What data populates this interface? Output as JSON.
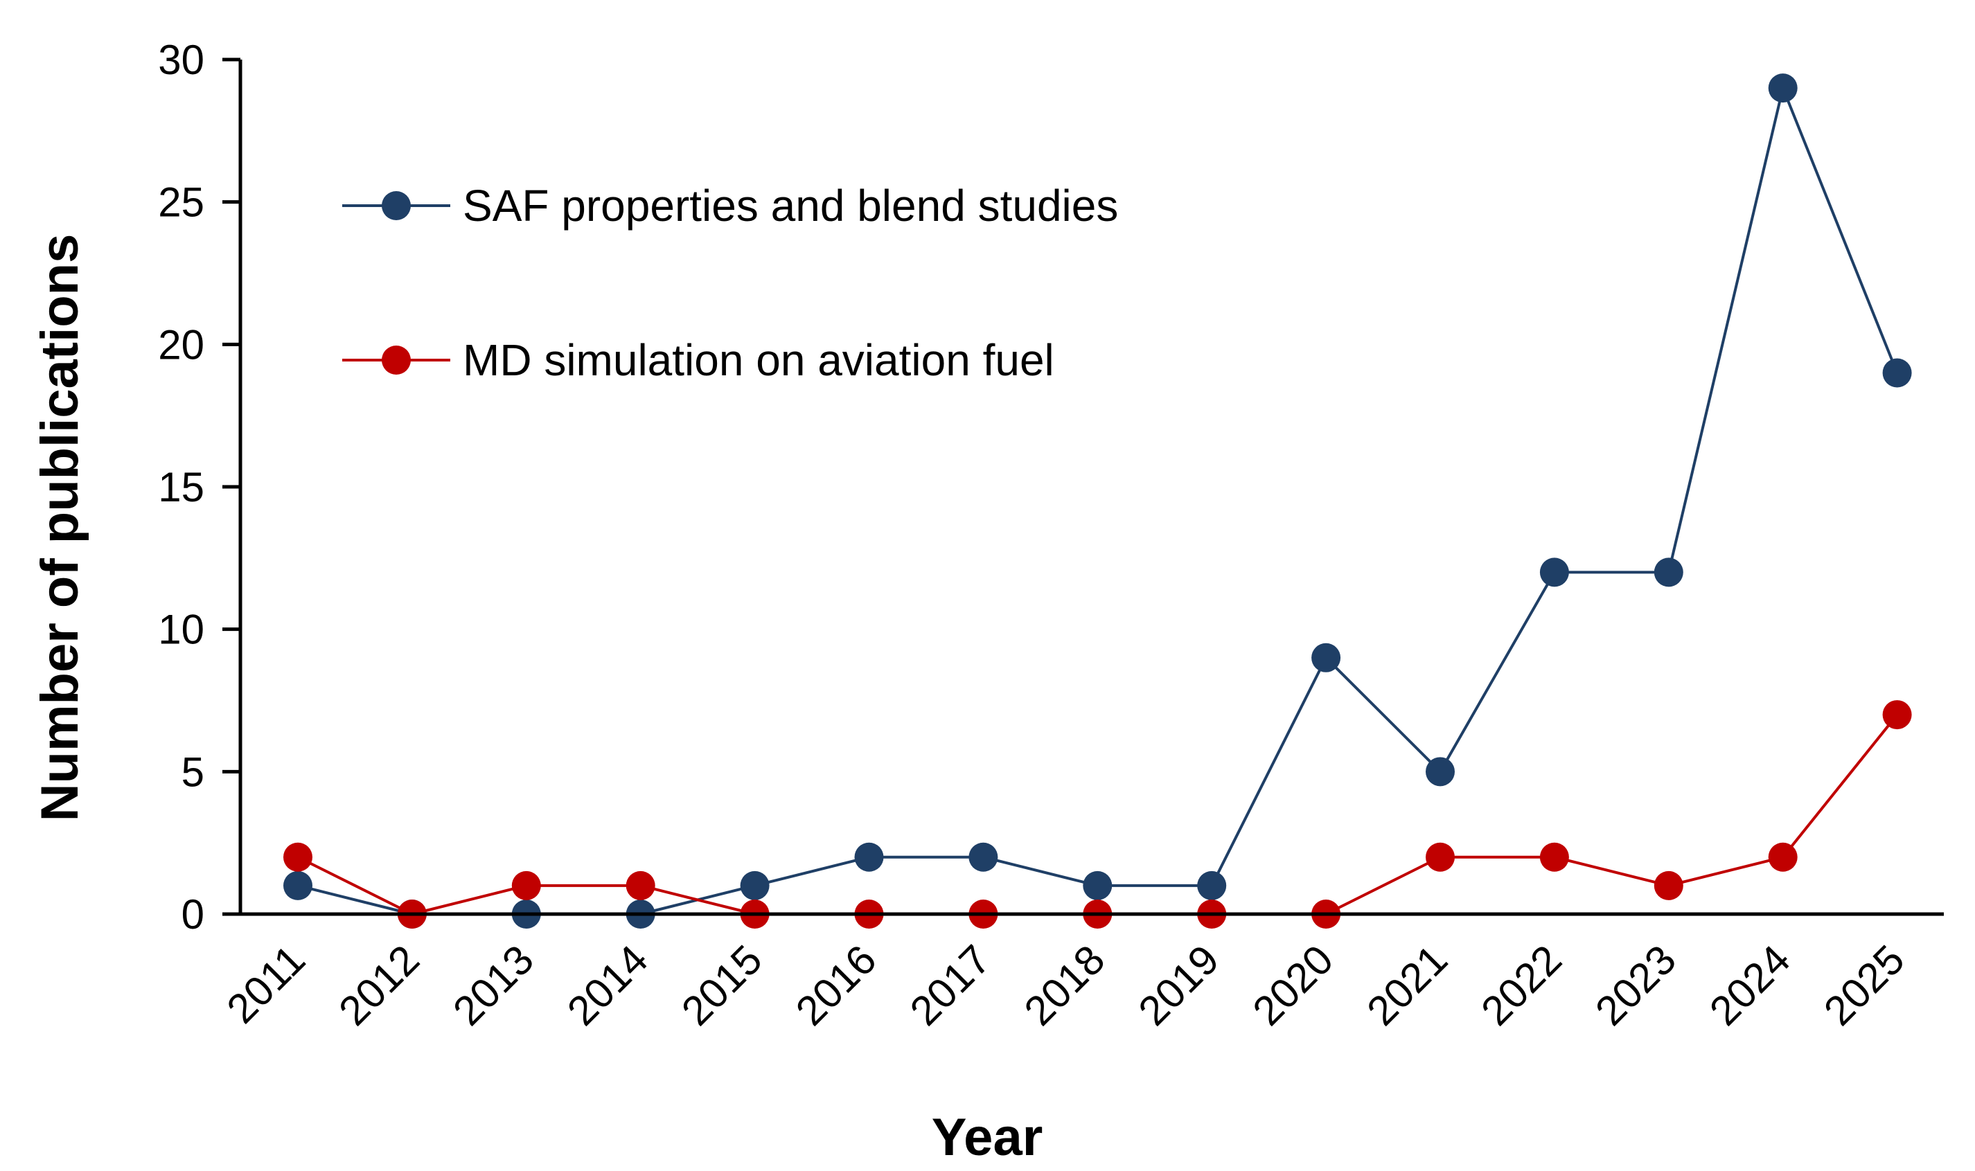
{
  "chart_data": {
    "type": "line",
    "title": "",
    "xlabel": "Year",
    "ylabel": "Number of publications",
    "categories": [
      "2011",
      "2012",
      "2013",
      "2014",
      "2015",
      "2016",
      "2017",
      "2018",
      "2019",
      "2020",
      "2021",
      "2022",
      "2023",
      "2024",
      "2025"
    ],
    "ylim": [
      0,
      30
    ],
    "yticks": [
      0,
      5,
      10,
      15,
      20,
      25,
      30
    ],
    "grid": false,
    "legend_position": "top-left",
    "series": [
      {
        "name": "SAF properties and blend studies",
        "color": "#1f3f66",
        "marker": "circle",
        "values": [
          1,
          0,
          0,
          0,
          1,
          2,
          2,
          1,
          1,
          9,
          5,
          12,
          12,
          29,
          19
        ]
      },
      {
        "name": "MD simulation on aviation fuel",
        "color": "#c00000",
        "marker": "circle",
        "values": [
          2,
          0,
          1,
          1,
          0,
          0,
          0,
          0,
          0,
          0,
          2,
          2,
          1,
          2,
          7
        ]
      }
    ]
  }
}
